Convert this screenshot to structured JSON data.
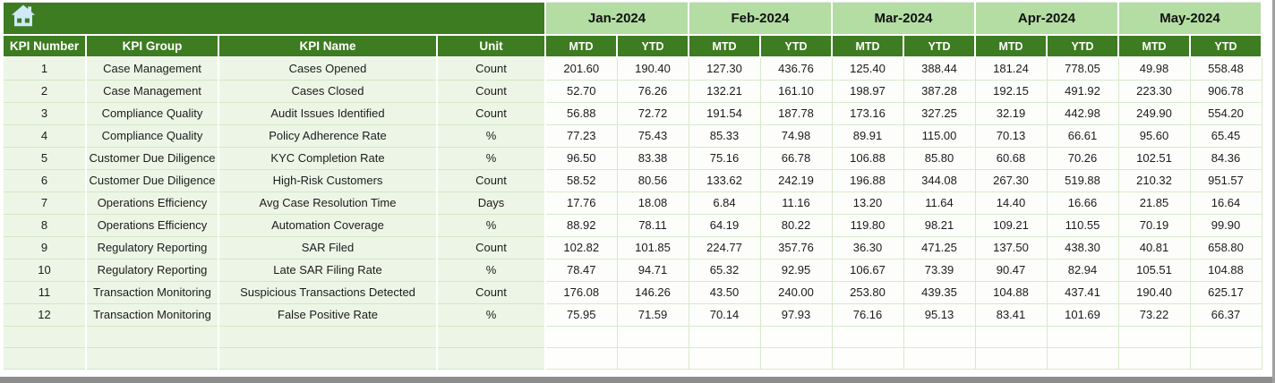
{
  "home_button": {
    "icon": "home-icon",
    "color": "#cfe9f6"
  },
  "colors": {
    "header_dark_green": "#3d7c21",
    "month_band_light_green": "#b3dda3",
    "left_cell_bg": "#edf6e6",
    "value_cell_bg": "#fdfefb",
    "gridline": "#d8e9ca",
    "scrollbar_gray": "#8d8d8d"
  },
  "table": {
    "left_headers": [
      "KPI Number",
      "KPI Group",
      "KPI Name",
      "Unit"
    ],
    "months": [
      "Jan-2024",
      "Feb-2024",
      "Mar-2024",
      "Apr-2024",
      "May-2024"
    ],
    "period_headers": [
      "MTD",
      "YTD"
    ],
    "rows": [
      {
        "kpi_number": "1",
        "kpi_group": "Case Management",
        "kpi_name": "Cases Opened",
        "unit": "Count",
        "values": [
          "201.60",
          "190.40",
          "127.30",
          "436.76",
          "125.40",
          "388.44",
          "181.24",
          "778.05",
          "49.98",
          "558.48"
        ]
      },
      {
        "kpi_number": "2",
        "kpi_group": "Case Management",
        "kpi_name": "Cases Closed",
        "unit": "Count",
        "values": [
          "52.70",
          "76.26",
          "132.21",
          "161.10",
          "198.97",
          "387.28",
          "192.15",
          "491.92",
          "223.30",
          "906.78"
        ]
      },
      {
        "kpi_number": "3",
        "kpi_group": "Compliance Quality",
        "kpi_name": "Audit Issues Identified",
        "unit": "Count",
        "values": [
          "56.88",
          "72.72",
          "191.54",
          "187.78",
          "173.16",
          "327.25",
          "32.19",
          "442.98",
          "249.90",
          "554.20"
        ]
      },
      {
        "kpi_number": "4",
        "kpi_group": "Compliance Quality",
        "kpi_name": "Policy Adherence Rate",
        "unit": "%",
        "values": [
          "77.23",
          "75.43",
          "85.33",
          "74.98",
          "89.91",
          "115.00",
          "70.13",
          "66.61",
          "95.60",
          "65.45"
        ]
      },
      {
        "kpi_number": "5",
        "kpi_group": "Customer Due Diligence",
        "kpi_name": "KYC Completion Rate",
        "unit": "%",
        "values": [
          "96.50",
          "83.38",
          "75.16",
          "66.78",
          "106.88",
          "85.80",
          "60.68",
          "70.26",
          "102.51",
          "84.36"
        ]
      },
      {
        "kpi_number": "6",
        "kpi_group": "Customer Due Diligence",
        "kpi_name": "High-Risk Customers",
        "unit": "Count",
        "values": [
          "58.52",
          "80.56",
          "133.62",
          "242.19",
          "196.88",
          "344.08",
          "267.30",
          "519.88",
          "210.32",
          "951.57"
        ]
      },
      {
        "kpi_number": "7",
        "kpi_group": "Operations Efficiency",
        "kpi_name": "Avg Case Resolution Time",
        "unit": "Days",
        "values": [
          "17.76",
          "18.08",
          "6.84",
          "11.16",
          "13.20",
          "11.64",
          "14.40",
          "16.66",
          "21.85",
          "16.64"
        ]
      },
      {
        "kpi_number": "8",
        "kpi_group": "Operations Efficiency",
        "kpi_name": "Automation Coverage",
        "unit": "%",
        "values": [
          "88.92",
          "78.11",
          "64.19",
          "80.22",
          "119.80",
          "98.21",
          "109.21",
          "110.55",
          "70.19",
          "99.90"
        ]
      },
      {
        "kpi_number": "9",
        "kpi_group": "Regulatory Reporting",
        "kpi_name": "SAR Filed",
        "unit": "Count",
        "values": [
          "102.82",
          "101.85",
          "224.77",
          "357.76",
          "36.30",
          "471.25",
          "137.50",
          "438.30",
          "40.81",
          "658.80"
        ]
      },
      {
        "kpi_number": "10",
        "kpi_group": "Regulatory Reporting",
        "kpi_name": "Late SAR Filing Rate",
        "unit": "%",
        "values": [
          "78.47",
          "94.71",
          "65.32",
          "92.95",
          "106.67",
          "73.39",
          "90.47",
          "82.94",
          "105.51",
          "104.88"
        ]
      },
      {
        "kpi_number": "11",
        "kpi_group": "Transaction Monitoring",
        "kpi_name": "Suspicious Transactions Detected",
        "unit": "Count",
        "values": [
          "176.08",
          "146.26",
          "43.50",
          "240.00",
          "253.80",
          "439.35",
          "104.88",
          "437.41",
          "190.40",
          "625.17"
        ]
      },
      {
        "kpi_number": "12",
        "kpi_group": "Transaction Monitoring",
        "kpi_name": "False Positive Rate",
        "unit": "%",
        "values": [
          "75.95",
          "71.59",
          "70.14",
          "97.93",
          "76.16",
          "95.13",
          "83.41",
          "101.69",
          "73.22",
          "66.37"
        ]
      }
    ],
    "empty_row_count": 2
  }
}
